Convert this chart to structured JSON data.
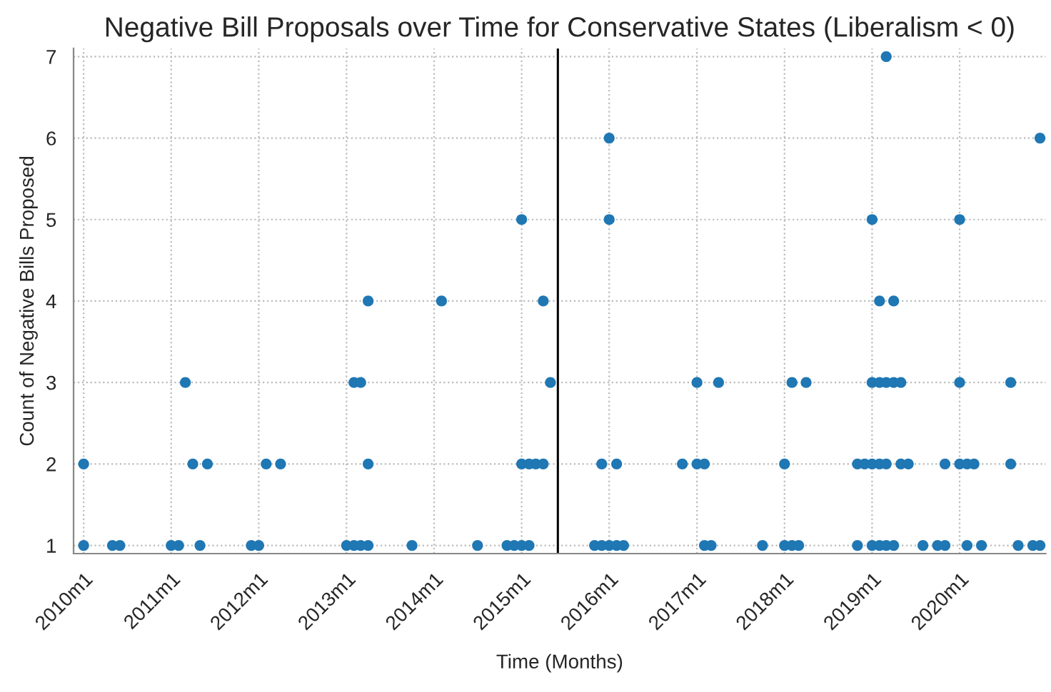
{
  "chart_data": {
    "type": "scatter",
    "title": "Negative Bill Proposals over Time for Conservative States (Liberalism < 0)",
    "xlabel": "Time (Months)",
    "ylabel": "Count of Negative Bills Proposed",
    "series": [
      {
        "color": "#1f77b4",
        "x": [
          "2010-01",
          "2010-05",
          "2010-06",
          "2011-01",
          "2011-02",
          "2011-05",
          "2011-12",
          "2012-01",
          "2013-01",
          "2013-02",
          "2013-03",
          "2013-04",
          "2013-10",
          "2014-07",
          "2014-11",
          "2014-12",
          "2015-01",
          "2015-02",
          "2015-11",
          "2015-12",
          "2016-01",
          "2016-02",
          "2016-03",
          "2017-02",
          "2017-03",
          "2017-10",
          "2018-01",
          "2018-02",
          "2018-03",
          "2018-11",
          "2019-01",
          "2019-02",
          "2019-03",
          "2019-04",
          "2019-08",
          "2019-10",
          "2019-11",
          "2020-02",
          "2020-04",
          "2020-09",
          "2020-11",
          "2020-12",
          "2010-01",
          "2011-04",
          "2011-06",
          "2012-02",
          "2012-04",
          "2013-04",
          "2015-01",
          "2015-02",
          "2015-03",
          "2015-04",
          "2015-12",
          "2016-02",
          "2016-11",
          "2017-01",
          "2017-02",
          "2018-01",
          "2018-11",
          "2018-12",
          "2019-01",
          "2019-02",
          "2019-03",
          "2019-05",
          "2019-06",
          "2019-11",
          "2020-01",
          "2020-02",
          "2020-03",
          "2020-08",
          "2011-03",
          "2013-02",
          "2013-03",
          "2015-05",
          "2017-01",
          "2017-04",
          "2018-02",
          "2018-04",
          "2019-01",
          "2019-02",
          "2019-03",
          "2019-04",
          "2019-05",
          "2020-01",
          "2020-08",
          "2013-04",
          "2014-02",
          "2015-04",
          "2019-02",
          "2019-04",
          "2015-01",
          "2016-01",
          "2019-01",
          "2020-01",
          "2016-01",
          "2020-12",
          "2019-03"
        ],
        "values": [
          1,
          1,
          1,
          1,
          1,
          1,
          1,
          1,
          1,
          1,
          1,
          1,
          1,
          1,
          1,
          1,
          1,
          1,
          1,
          1,
          1,
          1,
          1,
          1,
          1,
          1,
          1,
          1,
          1,
          1,
          1,
          1,
          1,
          1,
          1,
          1,
          1,
          1,
          1,
          1,
          1,
          1,
          2,
          2,
          2,
          2,
          2,
          2,
          2,
          2,
          2,
          2,
          2,
          2,
          2,
          2,
          2,
          2,
          2,
          2,
          2,
          2,
          2,
          2,
          2,
          2,
          2,
          2,
          2,
          2,
          3,
          3,
          3,
          3,
          3,
          3,
          3,
          3,
          3,
          3,
          3,
          3,
          3,
          3,
          3,
          4,
          4,
          4,
          4,
          4,
          5,
          5,
          5,
          5,
          6,
          6,
          7
        ]
      }
    ],
    "xlim": [
      "2009-11-20",
      "2020-12-25"
    ],
    "ylim": [
      0.9,
      7.1
    ],
    "xticks": [
      {
        "value": "2010-01",
        "label": "2010m1"
      },
      {
        "value": "2011-01",
        "label": "2011m1"
      },
      {
        "value": "2012-01",
        "label": "2012m1"
      },
      {
        "value": "2013-01",
        "label": "2013m1"
      },
      {
        "value": "2014-01",
        "label": "2014m1"
      },
      {
        "value": "2015-01",
        "label": "2015m1"
      },
      {
        "value": "2016-01",
        "label": "2016m1"
      },
      {
        "value": "2017-01",
        "label": "2017m1"
      },
      {
        "value": "2018-01",
        "label": "2018m1"
      },
      {
        "value": "2019-01",
        "label": "2019m1"
      },
      {
        "value": "2020-01",
        "label": "2020m1"
      }
    ],
    "yticks": [
      1,
      2,
      3,
      4,
      5,
      6,
      7
    ],
    "ref_lines": [
      {
        "axis": "x",
        "value": "2015-06",
        "color": "#000000"
      }
    ],
    "grid": true,
    "marker": "circle"
  }
}
